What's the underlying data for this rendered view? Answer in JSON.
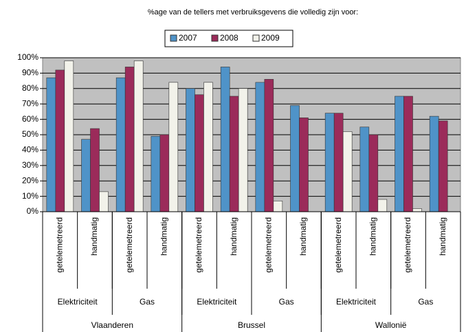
{
  "chart_data": {
    "type": "bar",
    "title": "%age  van de tellers met verbruiksgevens die volledig zijn voor:",
    "categories": [
      "getelemetreerd",
      "handmatig",
      "getelemetreerd",
      "handmatig",
      "getelemetreerd",
      "handmatig",
      "getelemetreerd",
      "handmatig",
      "getelemetreerd",
      "handmatig",
      "getelemetreerd",
      "handmatig"
    ],
    "category_levels": [
      [
        "Elektriciteit",
        "Gas",
        "Elektriciteit",
        "Gas",
        "Elektriciteit",
        "Gas"
      ],
      [
        "Vlaanderen",
        "Brussel",
        "Wallonië"
      ]
    ],
    "series": [
      {
        "name": "2007",
        "color": "#4f93c8",
        "values": [
          87,
          47,
          87,
          49,
          80,
          94,
          84,
          69,
          64,
          55,
          75,
          62
        ]
      },
      {
        "name": "2008",
        "color": "#9b2b5a",
        "values": [
          92,
          54,
          94,
          50,
          76,
          75,
          86,
          61,
          64,
          50,
          75,
          59
        ]
      },
      {
        "name": "2009",
        "color": "#f2f2ea",
        "values": [
          98,
          13,
          98,
          84,
          84,
          80,
          7,
          0,
          52,
          8,
          2,
          0
        ]
      }
    ],
    "ylim": [
      0,
      100
    ],
    "yticks": [
      {
        "value": 0,
        "label": "0%"
      },
      {
        "value": 10,
        "label": "10%"
      },
      {
        "value": 20,
        "label": "20%"
      },
      {
        "value": 30,
        "label": "30%"
      },
      {
        "value": 40,
        "label": "40%"
      },
      {
        "value": 50,
        "label": "50%"
      },
      {
        "value": 60,
        "label": "60%"
      },
      {
        "value": 70,
        "label": "70%"
      },
      {
        "value": 80,
        "label": "80%"
      },
      {
        "value": 90,
        "label": "90%"
      },
      {
        "value": 100,
        "label": "100%"
      }
    ],
    "grid": true,
    "legend": "top"
  }
}
